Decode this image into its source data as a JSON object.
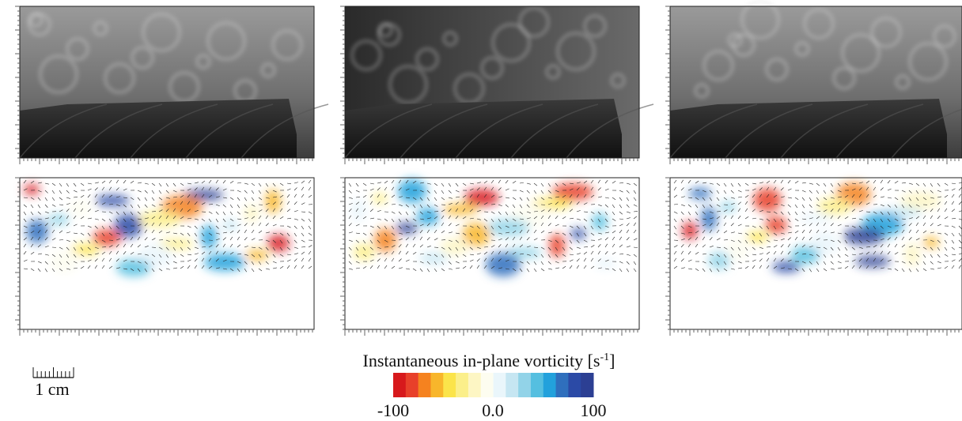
{
  "colorbar": {
    "title": "Instantaneous in-plane vorticity [s",
    "title_sup": "-1",
    "title_end": "]",
    "labels": [
      "-100",
      "0.0",
      "100"
    ]
  },
  "scale_bar": {
    "label": "1 cm"
  }
}
